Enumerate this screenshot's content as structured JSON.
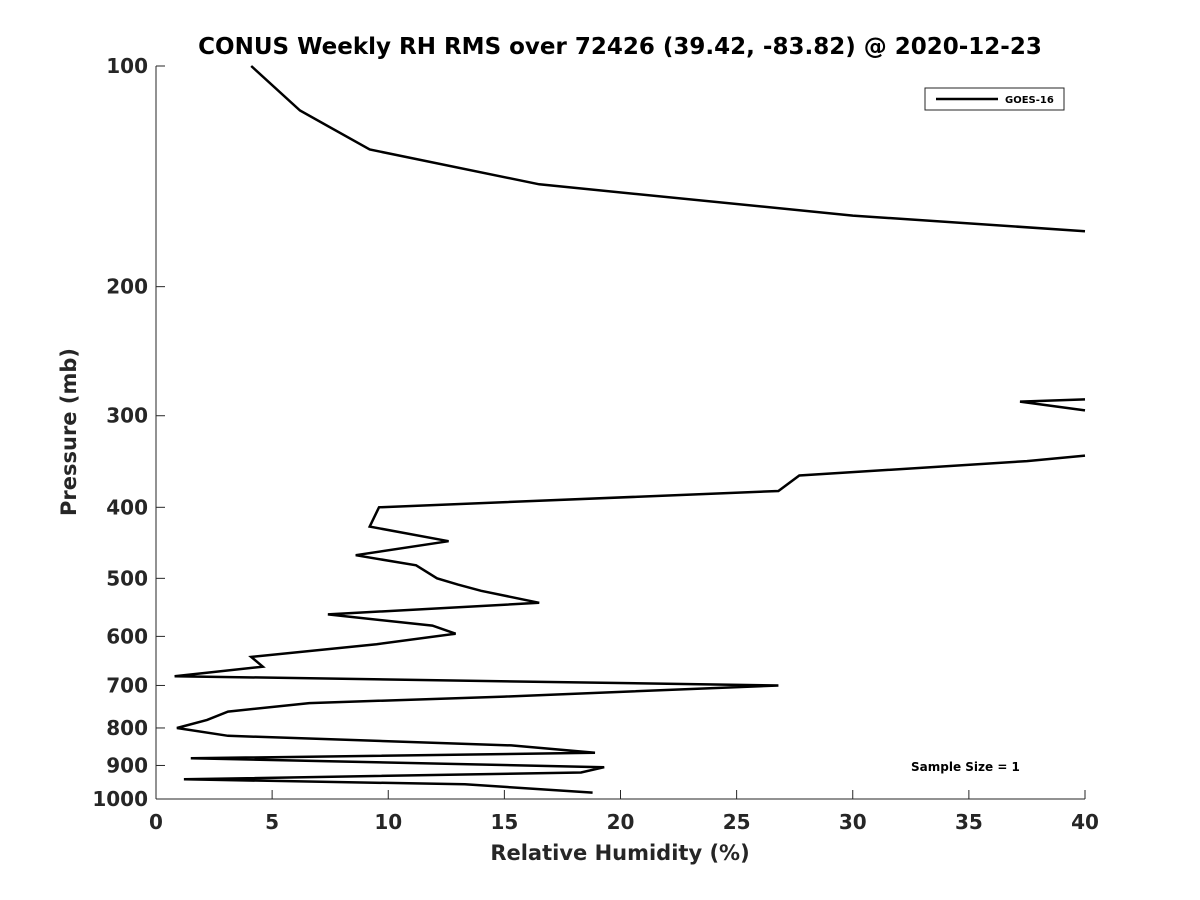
{
  "chart_data": {
    "type": "line",
    "title": "CONUS Weekly RH RMS over 72426 (39.42, -83.82) @ 2020-12-23",
    "xlabel": "Relative Humidity (%)",
    "ylabel": "Pressure (mb)",
    "xlim": [
      0,
      40
    ],
    "ylim": [
      1000,
      100
    ],
    "yscale": "log",
    "y_reversed": true,
    "x_ticks": [
      "0",
      "5",
      "10",
      "15",
      "20",
      "25",
      "30",
      "35",
      "40"
    ],
    "y_ticks": [
      "100",
      "200",
      "300",
      "400",
      "500",
      "600",
      "700",
      "800",
      "900",
      "1000"
    ],
    "grid": false,
    "legend_position": "top-right",
    "annotation": "Sample Size = 1",
    "series": [
      {
        "name": "GOES-16",
        "color": "#000000",
        "segments": [
          [
            [
              4.1,
              100
            ],
            [
              6.2,
              115
            ],
            [
              9.2,
              130
            ],
            [
              16.5,
              145
            ],
            [
              30.0,
              160
            ],
            [
              40.0,
              168
            ]
          ],
          [
            [
              40.0,
              285
            ],
            [
              37.2,
              287
            ],
            [
              40.0,
              295
            ]
          ],
          [
            [
              40.0,
              340
            ],
            [
              37.5,
              346
            ],
            [
              27.7,
              362
            ],
            [
              26.8,
              380
            ],
            [
              9.6,
              400
            ],
            [
              9.2,
              425
            ],
            [
              12.6,
              445
            ],
            [
              8.6,
              465
            ],
            [
              11.2,
              480
            ],
            [
              12.1,
              500
            ],
            [
              13.0,
              510
            ],
            [
              14.0,
              520
            ],
            [
              16.5,
              540
            ],
            [
              7.4,
              560
            ],
            [
              11.9,
              580
            ],
            [
              12.9,
              595
            ],
            [
              9.5,
              615
            ],
            [
              4.1,
              640
            ],
            [
              4.6,
              660
            ],
            [
              0.8,
              680
            ],
            [
              26.8,
              700
            ],
            [
              15.0,
              725
            ],
            [
              6.6,
              740
            ],
            [
              3.1,
              760
            ],
            [
              2.2,
              780
            ],
            [
              0.9,
              800
            ],
            [
              3.1,
              820
            ],
            [
              15.3,
              845
            ],
            [
              18.9,
              865
            ],
            [
              1.5,
              880
            ],
            [
              19.3,
              905
            ],
            [
              18.3,
              920
            ],
            [
              1.2,
              940
            ],
            [
              13.3,
              955
            ],
            [
              18.8,
              980
            ]
          ]
        ]
      }
    ]
  }
}
